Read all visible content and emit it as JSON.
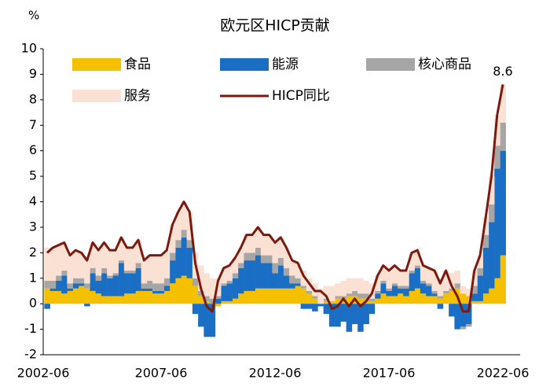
{
  "chart_data": {
    "type": "bar",
    "stacked": true,
    "title": "欧元区HICP贡献",
    "y_label": "%",
    "categories": [
      "2002-06",
      null,
      null,
      null,
      null,
      null,
      null,
      null,
      null,
      null,
      null,
      null,
      null,
      null,
      null,
      null,
      null,
      null,
      null,
      null,
      "2007-06",
      null,
      null,
      null,
      null,
      null,
      null,
      null,
      null,
      null,
      null,
      null,
      null,
      null,
      null,
      null,
      null,
      null,
      null,
      null,
      "2012-06",
      null,
      null,
      null,
      null,
      null,
      null,
      null,
      null,
      null,
      null,
      null,
      null,
      null,
      null,
      null,
      null,
      null,
      null,
      null,
      "2017-06",
      null,
      null,
      null,
      null,
      null,
      null,
      null,
      null,
      null,
      null,
      null,
      null,
      null,
      null,
      null,
      null,
      null,
      null,
      null,
      "2022-06"
    ],
    "ylim": [
      -2,
      10
    ],
    "yticks": [
      -2,
      -1,
      0,
      1,
      2,
      3,
      4,
      5,
      6,
      7,
      8,
      9,
      10
    ],
    "series": [
      {
        "name": "食品",
        "color": "#f5c000",
        "values": [
          0.6,
          0.5,
          0.5,
          0.4,
          0.5,
          0.6,
          0.7,
          0.6,
          0.5,
          0.4,
          0.3,
          0.3,
          0.3,
          0.3,
          0.4,
          0.4,
          0.5,
          0.5,
          0.5,
          0.4,
          0.4,
          0.5,
          0.8,
          1.0,
          1.1,
          1.0,
          0.7,
          0.3,
          0.1,
          0.0,
          -0.1,
          0.1,
          0.1,
          0.2,
          0.4,
          0.5,
          0.5,
          0.6,
          0.6,
          0.6,
          0.6,
          0.6,
          0.6,
          0.6,
          0.7,
          0.6,
          0.4,
          0.2,
          0.0,
          0.1,
          0.1,
          0.2,
          0.2,
          0.3,
          0.3,
          0.2,
          0.2,
          0.1,
          0.2,
          0.4,
          0.3,
          0.3,
          0.4,
          0.3,
          0.5,
          0.6,
          0.4,
          0.3,
          0.3,
          0.2,
          0.4,
          0.5,
          0.6,
          0.4,
          0.3,
          0.1,
          0.1,
          0.4,
          0.6,
          1.0,
          1.9
        ]
      },
      {
        "name": "能源",
        "color": "#1a6fc4",
        "values": [
          -0.2,
          0.1,
          0.4,
          0.7,
          0.1,
          0.2,
          0.1,
          -0.1,
          0.7,
          0.5,
          0.9,
          0.7,
          0.8,
          1.3,
          0.8,
          0.8,
          0.9,
          0.1,
          0.1,
          0.1,
          0.1,
          0.2,
          0.9,
          1.2,
          1.5,
          1.2,
          -0.4,
          -0.9,
          -1.3,
          -1.3,
          0.2,
          0.6,
          0.7,
          0.8,
          1.0,
          1.2,
          1.2,
          1.3,
          1.0,
          1.0,
          0.6,
          0.9,
          0.5,
          0.2,
          0.1,
          -0.2,
          -0.2,
          -0.3,
          -0.1,
          -0.4,
          -0.9,
          -0.9,
          -0.7,
          -1.1,
          -0.8,
          -1.1,
          -0.8,
          -0.4,
          0.2,
          0.4,
          0.2,
          0.4,
          0.2,
          0.3,
          0.7,
          0.8,
          0.4,
          0.4,
          0.1,
          -0.2,
          0.0,
          -0.5,
          -1.0,
          -0.9,
          -0.8,
          0.3,
          1.0,
          1.8,
          2.6,
          4.3,
          4.1
        ]
      },
      {
        "name": "核心商品",
        "color": "#a6a6a6",
        "values": [
          0.3,
          0.3,
          0.2,
          0.2,
          0.2,
          0.2,
          0.2,
          0.2,
          0.2,
          0.2,
          0.2,
          0.1,
          0.1,
          0.1,
          0.1,
          0.1,
          0.2,
          0.2,
          0.3,
          0.3,
          0.3,
          0.3,
          0.3,
          0.3,
          0.3,
          0.3,
          0.3,
          0.2,
          0.2,
          0.2,
          0.1,
          0.1,
          0.1,
          0.2,
          0.2,
          0.3,
          0.3,
          0.3,
          0.3,
          0.3,
          0.4,
          0.3,
          0.3,
          0.3,
          0.2,
          0.1,
          0.1,
          0.1,
          0.0,
          0.1,
          0.0,
          0.1,
          0.1,
          0.1,
          0.2,
          0.2,
          0.2,
          0.1,
          0.1,
          0.1,
          0.1,
          0.1,
          0.1,
          0.1,
          0.1,
          0.1,
          0.1,
          0.1,
          0.1,
          0.1,
          0.1,
          0.1,
          0.2,
          -0.1,
          -0.1,
          0.3,
          0.3,
          0.5,
          0.7,
          0.9,
          1.1
        ]
      },
      {
        "name": "服务",
        "color": "#fbe0d4",
        "values": [
          1.3,
          1.3,
          1.2,
          1.1,
          1.1,
          1.1,
          1.0,
          1.0,
          1.0,
          1.0,
          1.0,
          1.0,
          0.9,
          0.9,
          0.9,
          0.9,
          0.9,
          0.9,
          1.0,
          1.1,
          1.1,
          1.1,
          1.1,
          1.1,
          1.1,
          1.1,
          1.0,
          1.0,
          0.9,
          0.8,
          0.7,
          0.6,
          0.6,
          0.6,
          0.6,
          0.7,
          0.7,
          0.8,
          0.8,
          0.8,
          0.8,
          0.8,
          0.8,
          0.6,
          0.6,
          0.6,
          0.5,
          0.5,
          0.6,
          0.5,
          0.6,
          0.5,
          0.6,
          0.6,
          0.5,
          0.6,
          0.5,
          0.6,
          0.6,
          0.6,
          0.7,
          0.7,
          0.6,
          0.6,
          0.7,
          0.6,
          0.6,
          0.6,
          0.8,
          0.7,
          0.8,
          0.6,
          0.5,
          0.3,
          0.3,
          0.6,
          0.5,
          0.7,
          1.1,
          1.2,
          1.5
        ]
      },
      {
        "name": "HICP同比",
        "color": "#7b1a0f",
        "type": "line",
        "values": [
          2.0,
          2.2,
          2.3,
          2.4,
          1.9,
          2.1,
          2.0,
          1.7,
          2.4,
          2.1,
          2.4,
          2.1,
          2.1,
          2.6,
          2.2,
          2.2,
          2.5,
          1.7,
          1.9,
          1.9,
          1.9,
          2.1,
          3.1,
          3.6,
          4.0,
          3.6,
          1.6,
          0.6,
          -0.1,
          -0.3,
          0.9,
          1.4,
          1.5,
          1.8,
          2.2,
          2.7,
          2.7,
          3.0,
          2.7,
          2.7,
          2.4,
          2.6,
          2.2,
          1.7,
          1.6,
          1.1,
          0.8,
          0.5,
          0.5,
          0.3,
          -0.2,
          -0.1,
          0.2,
          -0.1,
          0.2,
          -0.1,
          0.1,
          0.4,
          1.1,
          1.5,
          1.3,
          1.5,
          1.3,
          1.3,
          2.0,
          2.1,
          1.5,
          1.4,
          1.3,
          0.8,
          1.3,
          0.7,
          0.3,
          -0.3,
          -0.3,
          1.3,
          1.9,
          3.4,
          5.0,
          7.4,
          8.6
        ]
      }
    ]
  }
}
